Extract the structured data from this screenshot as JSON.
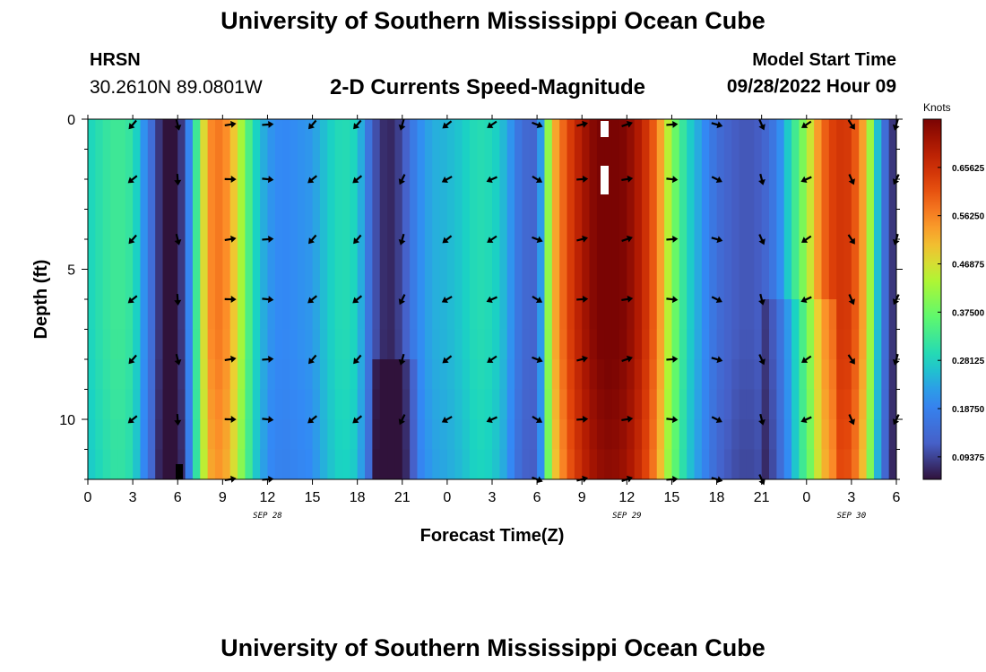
{
  "header": {
    "title": "University of Southern Mississippi Ocean Cube",
    "station": "HRSN",
    "coordinates": "30.2610N  89.0801W",
    "subtitle": "2-D Currents Speed-Magnitude",
    "model_start_label": "Model Start Time",
    "model_start_value": "09/28/2022 Hour 09"
  },
  "footer": {
    "title": "University of Southern Mississippi Ocean Cube"
  },
  "chart_data": {
    "type": "heatmap",
    "title": "2-D Currents Speed-Magnitude",
    "xlabel": "Forecast Time(Z)",
    "ylabel": "Depth (ft)",
    "x_hours_from_start": [
      0,
      54
    ],
    "x_tick_labels": [
      "0",
      "3",
      "6",
      "9",
      "12",
      "15",
      "18",
      "21",
      "0",
      "3",
      "6",
      "9",
      "12",
      "15",
      "18",
      "21",
      "0",
      "3",
      "6"
    ],
    "date_labels": [
      {
        "text": "SEP 28",
        "hour": 12
      },
      {
        "text": "SEP 29",
        "hour": 36
      },
      {
        "text": "SEP 30",
        "hour": 51
      }
    ],
    "y_range": [
      0,
      12
    ],
    "y_ticks": [
      0,
      5,
      10
    ],
    "colorbar": {
      "title": "Knots",
      "range": [
        0.05,
        0.75
      ],
      "ticks": [
        "0.65625",
        "0.56250",
        "0.46875",
        "0.37500",
        "0.28125",
        "0.18750",
        "0.09375"
      ],
      "tick_values": [
        0.65625,
        0.5625,
        0.46875,
        0.375,
        0.28125,
        0.1875,
        0.09375
      ]
    },
    "speed_profile": [
      {
        "h": 0,
        "v": 0.28
      },
      {
        "h": 1,
        "v": 0.31
      },
      {
        "h": 2,
        "v": 0.33
      },
      {
        "h": 3,
        "v": 0.31
      },
      {
        "h": 4,
        "v": 0.18
      },
      {
        "h": 5,
        "v": 0.05
      },
      {
        "h": 6,
        "v": 0.03
      },
      {
        "h": 7,
        "v": 0.25
      },
      {
        "h": 8,
        "v": 0.55
      },
      {
        "h": 9,
        "v": 0.58
      },
      {
        "h": 10,
        "v": 0.47
      },
      {
        "h": 11,
        "v": 0.3
      },
      {
        "h": 12,
        "v": 0.22
      },
      {
        "h": 13,
        "v": 0.2
      },
      {
        "h": 14,
        "v": 0.21
      },
      {
        "h": 15,
        "v": 0.22
      },
      {
        "h": 16,
        "v": 0.27
      },
      {
        "h": 17,
        "v": 0.3
      },
      {
        "h": 18,
        "v": 0.28
      },
      {
        "h": 19,
        "v": 0.12
      },
      {
        "h": 20,
        "v": 0.06
      },
      {
        "h": 21,
        "v": 0.1
      },
      {
        "h": 22,
        "v": 0.2
      },
      {
        "h": 23,
        "v": 0.24
      },
      {
        "h": 24,
        "v": 0.25
      },
      {
        "h": 25,
        "v": 0.27
      },
      {
        "h": 26,
        "v": 0.3
      },
      {
        "h": 27,
        "v": 0.29
      },
      {
        "h": 28,
        "v": 0.24
      },
      {
        "h": 29,
        "v": 0.14
      },
      {
        "h": 30,
        "v": 0.13
      },
      {
        "h": 31,
        "v": 0.5
      },
      {
        "h": 32,
        "v": 0.62
      },
      {
        "h": 33,
        "v": 0.7
      },
      {
        "h": 34,
        "v": 0.75
      },
      {
        "h": 35,
        "v": 0.76
      },
      {
        "h": 36,
        "v": 0.74
      },
      {
        "h": 37,
        "v": 0.68
      },
      {
        "h": 38,
        "v": 0.58
      },
      {
        "h": 39,
        "v": 0.4
      },
      {
        "h": 40,
        "v": 0.29
      },
      {
        "h": 41,
        "v": 0.22
      },
      {
        "h": 42,
        "v": 0.15
      },
      {
        "h": 43,
        "v": 0.12
      },
      {
        "h": 44,
        "v": 0.11
      },
      {
        "h": 45,
        "v": 0.12
      },
      {
        "h": 46,
        "v": 0.18
      },
      {
        "h": 47,
        "v": 0.3
      },
      {
        "h": 48,
        "v": 0.42
      },
      {
        "h": 49,
        "v": 0.58
      },
      {
        "h": 50,
        "v": 0.65
      },
      {
        "h": 51,
        "v": 0.64
      },
      {
        "h": 52,
        "v": 0.5
      },
      {
        "h": 53,
        "v": 0.18
      },
      {
        "h": 54,
        "v": 0.05
      }
    ],
    "arrow_depths": [
      0,
      2,
      4,
      6,
      8,
      10,
      12
    ],
    "arrow_directions_deg": [
      {
        "h": 3,
        "deg": 225
      },
      {
        "h": 6,
        "deg": 170
      },
      {
        "h": 9.5,
        "deg": 85
      },
      {
        "h": 12,
        "deg": 90
      },
      {
        "h": 15,
        "deg": 225
      },
      {
        "h": 18,
        "deg": 225
      },
      {
        "h": 21,
        "deg": 200
      },
      {
        "h": 24,
        "deg": 235
      },
      {
        "h": 27,
        "deg": 240
      },
      {
        "h": 30,
        "deg": 115
      },
      {
        "h": 33,
        "deg": 80
      },
      {
        "h": 36,
        "deg": 75
      },
      {
        "h": 39,
        "deg": 90
      },
      {
        "h": 42,
        "deg": 110
      },
      {
        "h": 45,
        "deg": 160
      },
      {
        "h": 48,
        "deg": 240
      },
      {
        "h": 51,
        "deg": 150
      },
      {
        "h": 54,
        "deg": 200
      }
    ]
  }
}
